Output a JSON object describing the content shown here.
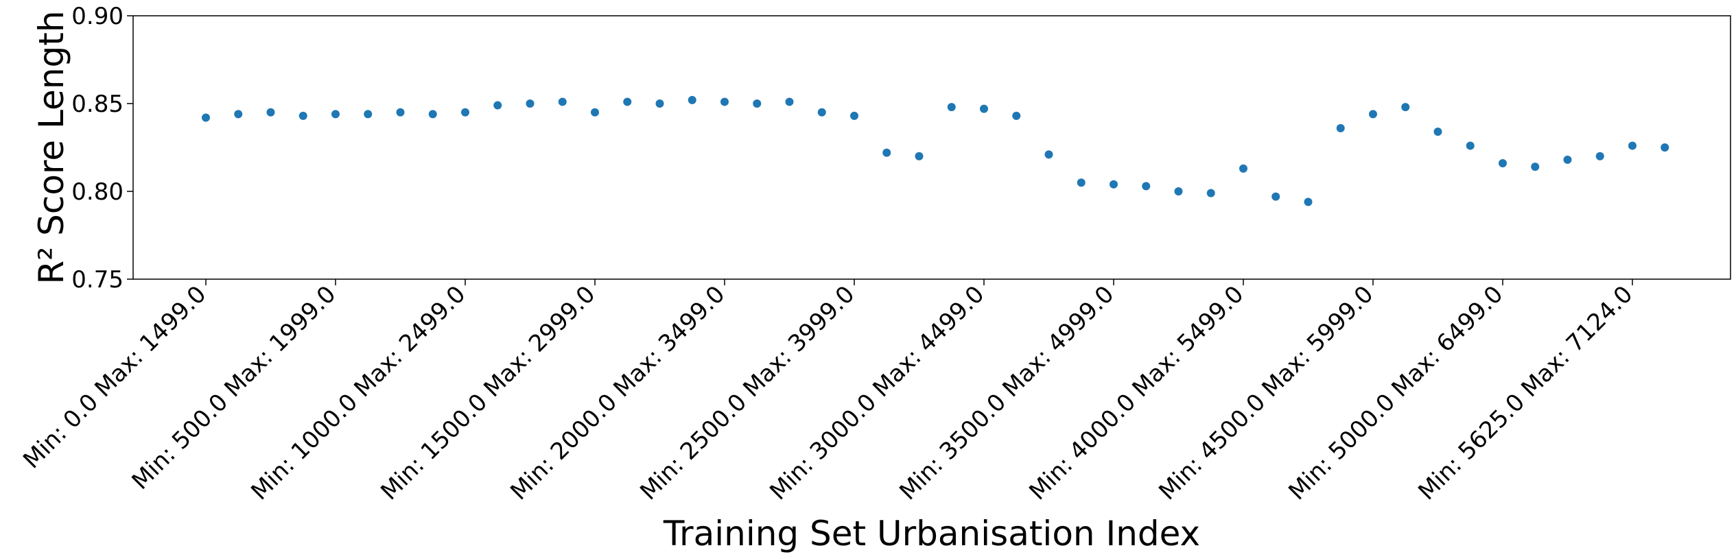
{
  "chart_data": {
    "type": "scatter",
    "xlabel": "Training Set Urbanisation Index",
    "ylabel": "R² Score Length",
    "ylim": [
      0.75,
      0.9
    ],
    "yticks": [
      "0.75",
      "0.80",
      "0.85",
      "0.90"
    ],
    "grid": false,
    "point_color": "#1f77b4",
    "x_tick_labels": [
      "Min: 0.0 Max: 1499.0",
      "Min: 500.0 Max: 1999.0",
      "Min: 1000.0 Max: 2499.0",
      "Min: 1500.0 Max: 2999.0",
      "Min: 2000.0 Max: 3499.0",
      "Min: 2500.0 Max: 3999.0",
      "Min: 3000.0 Max: 4499.0",
      "Min: 3500.0 Max: 4999.0",
      "Min: 4000.0 Max: 5499.0",
      "Min: 4500.0 Max: 5999.0",
      "Min: 5000.0 Max: 6499.0",
      "Min: 5625.0 Max: 7124.0"
    ],
    "values": [
      0.842,
      0.844,
      0.845,
      0.843,
      0.844,
      0.844,
      0.845,
      0.844,
      0.845,
      0.849,
      0.85,
      0.851,
      0.845,
      0.851,
      0.85,
      0.852,
      0.851,
      0.85,
      0.851,
      0.845,
      0.843,
      0.822,
      0.82,
      0.848,
      0.847,
      0.843,
      0.821,
      0.805,
      0.804,
      0.803,
      0.8,
      0.799,
      0.813,
      0.797,
      0.794,
      0.836,
      0.844,
      0.848,
      0.834,
      0.826,
      0.816,
      0.814,
      0.818,
      0.82,
      0.826,
      0.825
    ]
  }
}
